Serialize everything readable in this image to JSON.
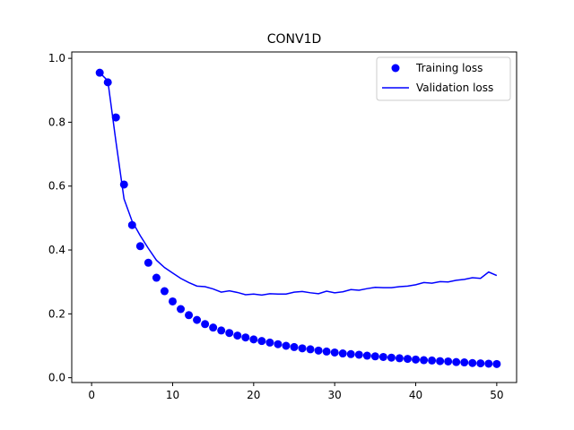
{
  "chart_data": {
    "type": "line",
    "title": "CONV1D",
    "xlabel": "",
    "ylabel": "",
    "xlim": [
      -2.45,
      52.45
    ],
    "ylim": [
      -0.015,
      1.02
    ],
    "x_ticks": [
      0,
      10,
      20,
      30,
      40,
      50
    ],
    "x_tick_labels": [
      "0",
      "10",
      "20",
      "30",
      "40",
      "50"
    ],
    "y_ticks": [
      0.0,
      0.2,
      0.4,
      0.6,
      0.8,
      1.0
    ],
    "y_tick_labels": [
      "0.0",
      "0.2",
      "0.4",
      "0.6",
      "0.8",
      "1.0"
    ],
    "grid": false,
    "legend_position": "top-right",
    "x": [
      1,
      2,
      3,
      4,
      5,
      6,
      7,
      8,
      9,
      10,
      11,
      12,
      13,
      14,
      15,
      16,
      17,
      18,
      19,
      20,
      21,
      22,
      23,
      24,
      25,
      26,
      27,
      28,
      29,
      30,
      31,
      32,
      33,
      34,
      35,
      36,
      37,
      38,
      39,
      40,
      41,
      42,
      43,
      44,
      45,
      46,
      47,
      48,
      49,
      50
    ],
    "series": [
      {
        "name": "Training loss",
        "style": "markers",
        "color": "#0000ff",
        "values": [
          0.955,
          0.925,
          0.815,
          0.605,
          0.478,
          0.412,
          0.36,
          0.313,
          0.271,
          0.239,
          0.215,
          0.196,
          0.181,
          0.168,
          0.157,
          0.148,
          0.14,
          0.132,
          0.126,
          0.12,
          0.115,
          0.11,
          0.105,
          0.1,
          0.096,
          0.092,
          0.089,
          0.085,
          0.082,
          0.079,
          0.076,
          0.074,
          0.072,
          0.069,
          0.067,
          0.065,
          0.063,
          0.061,
          0.059,
          0.057,
          0.055,
          0.054,
          0.052,
          0.051,
          0.049,
          0.048,
          0.046,
          0.045,
          0.044,
          0.043
        ]
      },
      {
        "name": "Validation loss",
        "style": "line",
        "color": "#0000ff",
        "values": [
          0.955,
          0.93,
          0.74,
          0.56,
          0.49,
          0.445,
          0.405,
          0.368,
          0.345,
          0.328,
          0.311,
          0.298,
          0.287,
          0.285,
          0.278,
          0.268,
          0.272,
          0.267,
          0.26,
          0.262,
          0.259,
          0.263,
          0.262,
          0.262,
          0.268,
          0.27,
          0.266,
          0.263,
          0.271,
          0.266,
          0.269,
          0.276,
          0.274,
          0.279,
          0.283,
          0.282,
          0.282,
          0.285,
          0.287,
          0.291,
          0.298,
          0.296,
          0.301,
          0.3,
          0.305,
          0.308,
          0.313,
          0.311,
          0.331,
          0.32
        ]
      }
    ]
  }
}
